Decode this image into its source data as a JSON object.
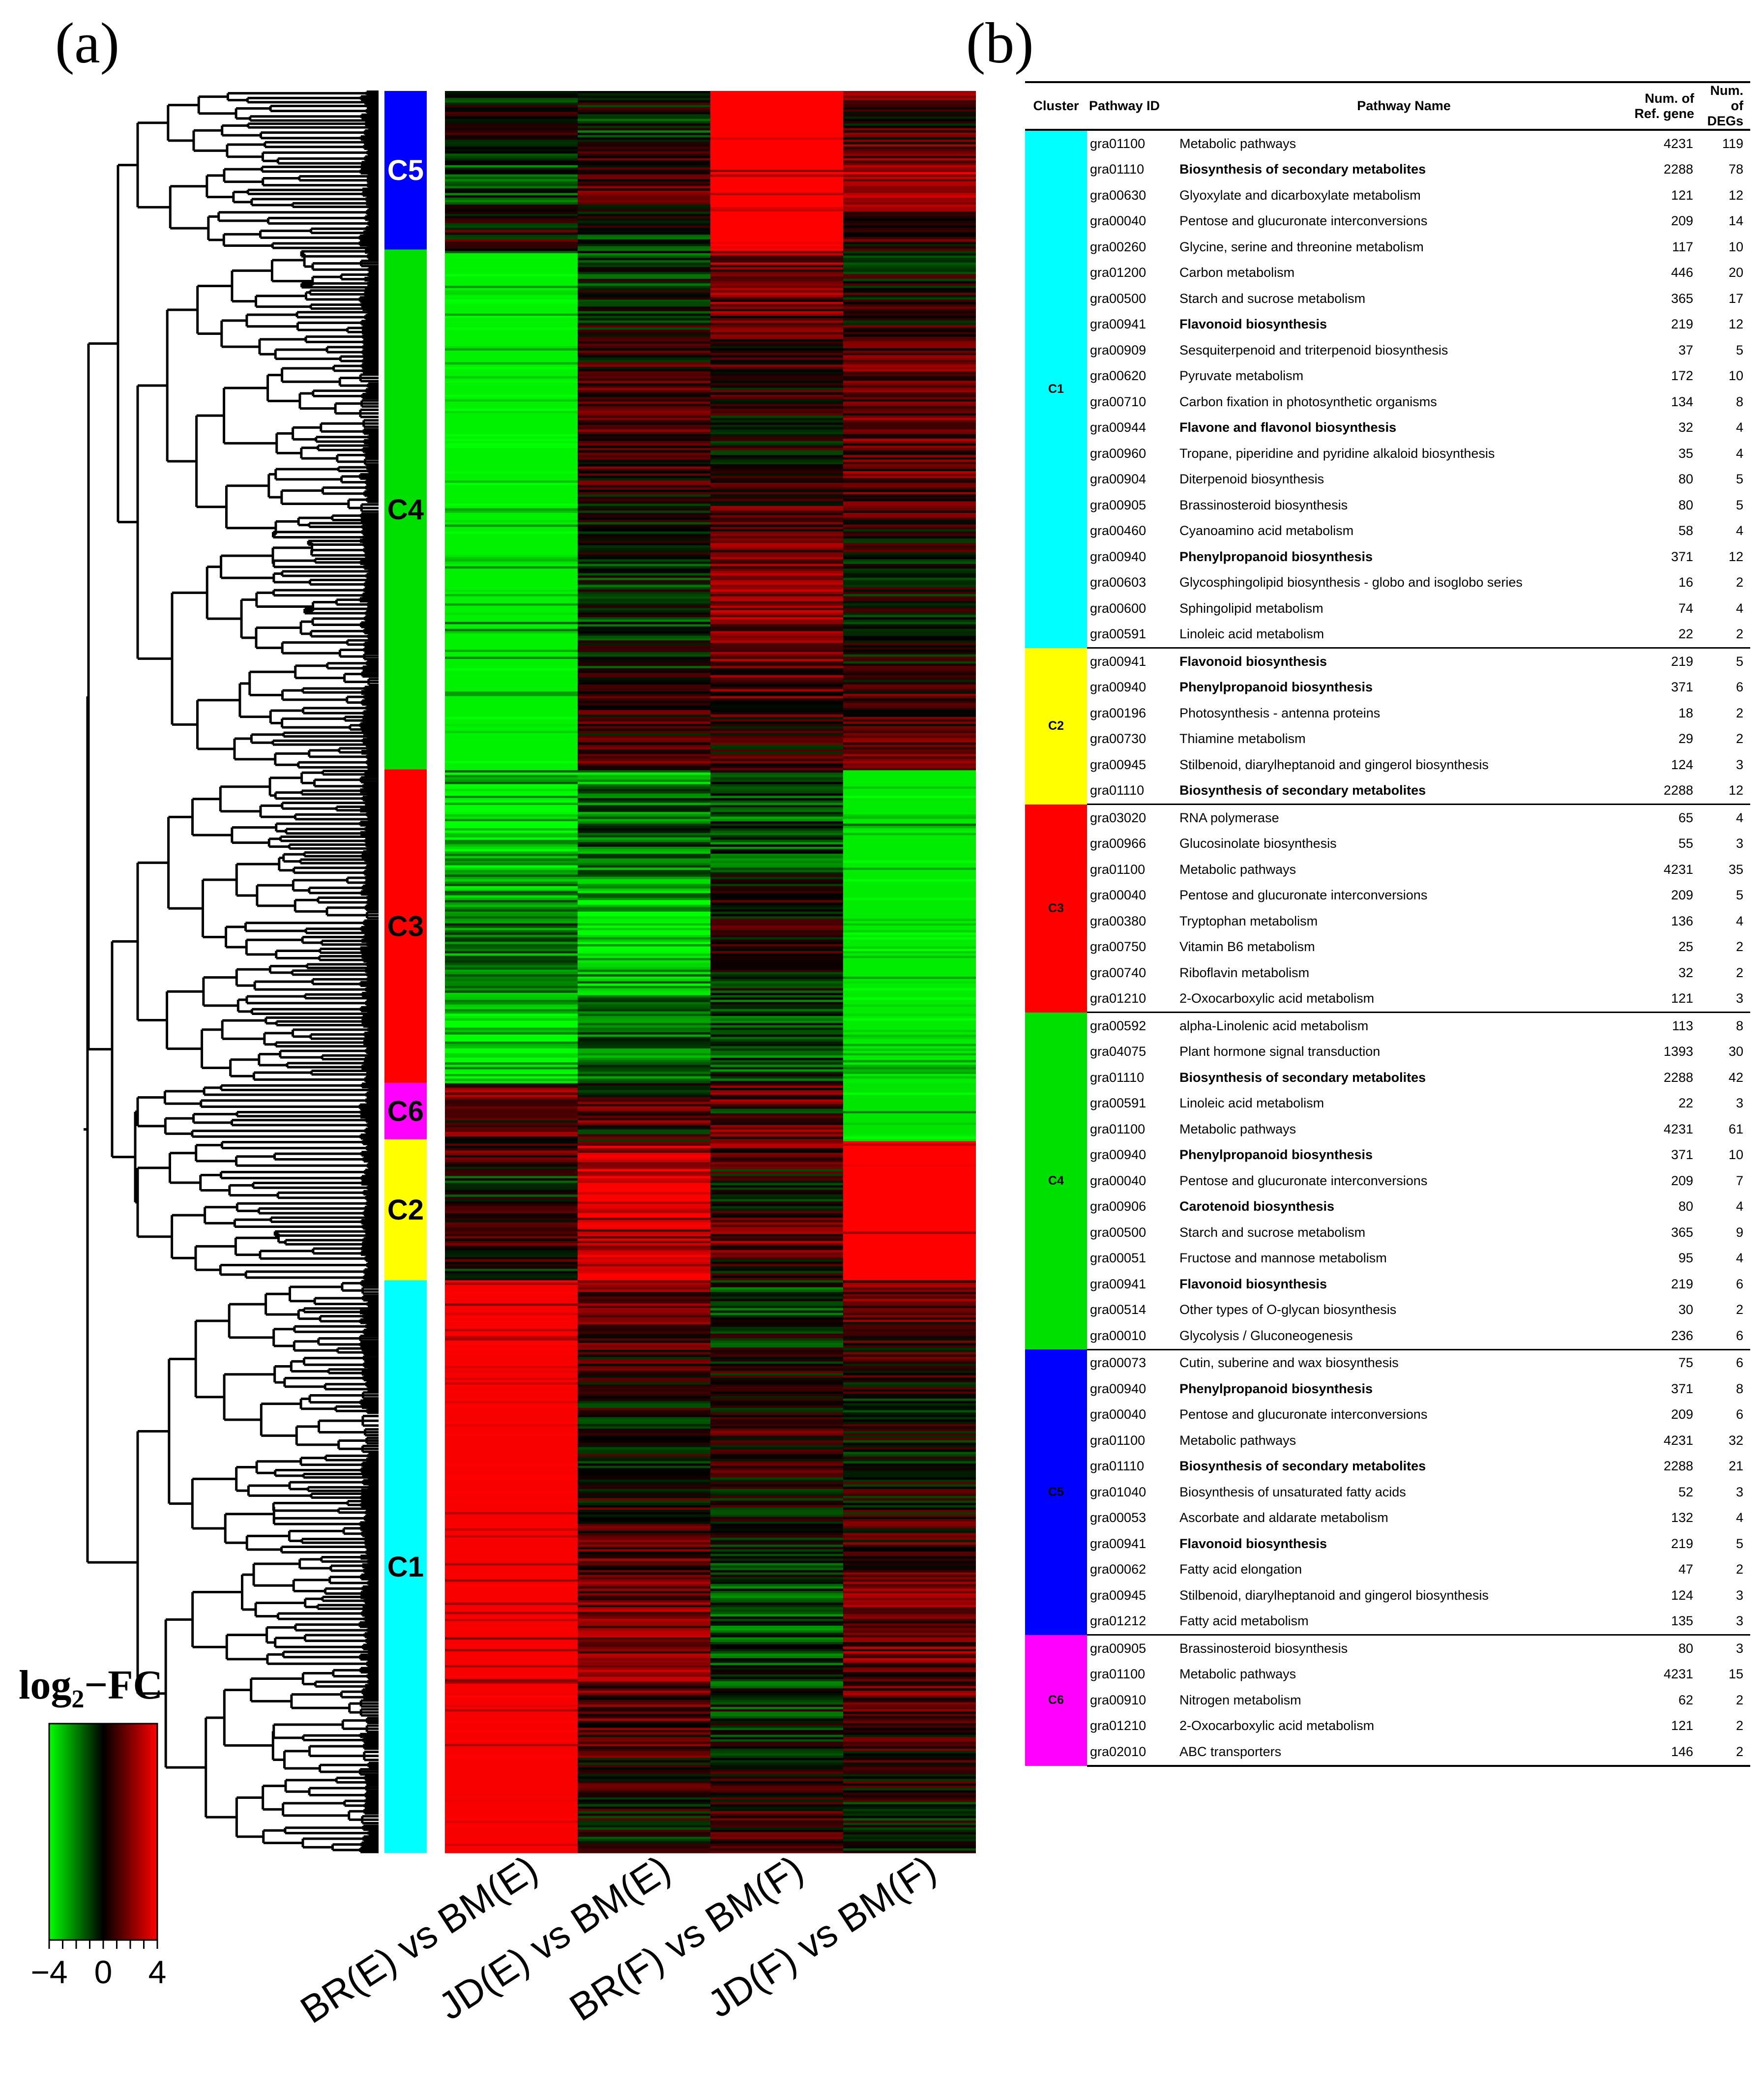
{
  "panel_labels": {
    "a": "(a)",
    "b": "(b)"
  },
  "chart_data": [
    {
      "type": "heatmap",
      "title": "",
      "columns": [
        "BR(E) vs BM(E)",
        "JD(E) vs BM(E)",
        "BR(F) vs BM(F)",
        "JD(F) vs BM(F)"
      ],
      "color_scale": {
        "label": "log2−FC",
        "label_base": "log",
        "label_sub": "2",
        "label_rest": "−FC",
        "ticks": [
          "−4",
          "0",
          "4"
        ],
        "min": -4,
        "max": 4,
        "low_color": "#00ff00",
        "mid_color": "#000000",
        "high_color": "#ff0000"
      },
      "clusters": [
        {
          "name": "C5",
          "color": "#0000ff",
          "text_color": "#ffffff",
          "share": 0.09,
          "pattern": [
            -0.5,
            0.2,
            4.0,
            1.6
          ]
        },
        {
          "name": "C4",
          "color": "#00e000",
          "text_color": "#000000",
          "share": 0.295,
          "pattern": [
            -3.8,
            0.2,
            1.2,
            0.8
          ]
        },
        {
          "name": "C3",
          "color": "#ff0000",
          "text_color": "#000000",
          "share": 0.178,
          "pattern": [
            -2.6,
            -2.4,
            -0.4,
            -3.7
          ]
        },
        {
          "name": "C6",
          "color": "#ff00ff",
          "text_color": "#000000",
          "share": 0.032,
          "pattern": [
            0.8,
            1.0,
            0.8,
            -3.6
          ]
        },
        {
          "name": "C2",
          "color": "#ffff00",
          "text_color": "#000000",
          "share": 0.08,
          "pattern": [
            0.2,
            3.3,
            0.6,
            4.0
          ]
        },
        {
          "name": "C1",
          "color": "#00ffff",
          "text_color": "#000000",
          "share": 0.325,
          "pattern": [
            3.9,
            1.0,
            -0.3,
            0.8
          ]
        }
      ]
    }
  ],
  "table": {
    "headers": {
      "cluster": "Cluster",
      "pathway_id": "Pathway ID",
      "pathway_name": "Pathway Name",
      "ref_line1": "Num. of",
      "ref_line2": "Ref. gene",
      "degs_line1": "Num. of",
      "degs_line2": "DEGs"
    },
    "groups": [
      {
        "cluster": "C1",
        "color": "#00ffff",
        "rows": [
          {
            "id": "gra01100",
            "name": "Metabolic pathways",
            "ref": 4231,
            "degs": 119,
            "bold": false
          },
          {
            "id": "gra01110",
            "name": "Biosynthesis of secondary metabolites",
            "ref": 2288,
            "degs": 78,
            "bold": true
          },
          {
            "id": "gra00630",
            "name": "Glyoxylate and dicarboxylate metabolism",
            "ref": 121,
            "degs": 12,
            "bold": false
          },
          {
            "id": "gra00040",
            "name": "Pentose and glucuronate interconversions",
            "ref": 209,
            "degs": 14,
            "bold": false
          },
          {
            "id": "gra00260",
            "name": "Glycine, serine and threonine metabolism",
            "ref": 117,
            "degs": 10,
            "bold": false
          },
          {
            "id": "gra01200",
            "name": "Carbon metabolism",
            "ref": 446,
            "degs": 20,
            "bold": false
          },
          {
            "id": "gra00500",
            "name": "Starch and sucrose metabolism",
            "ref": 365,
            "degs": 17,
            "bold": false
          },
          {
            "id": "gra00941",
            "name": "Flavonoid biosynthesis",
            "ref": 219,
            "degs": 12,
            "bold": true
          },
          {
            "id": "gra00909",
            "name": "Sesquiterpenoid and triterpenoid biosynthesis",
            "ref": 37,
            "degs": 5,
            "bold": false
          },
          {
            "id": "gra00620",
            "name": "Pyruvate metabolism",
            "ref": 172,
            "degs": 10,
            "bold": false
          },
          {
            "id": "gra00710",
            "name": "Carbon fixation in photosynthetic organisms",
            "ref": 134,
            "degs": 8,
            "bold": false
          },
          {
            "id": "gra00944",
            "name": "Flavone and flavonol biosynthesis",
            "ref": 32,
            "degs": 4,
            "bold": true
          },
          {
            "id": "gra00960",
            "name": "Tropane, piperidine and pyridine alkaloid biosynthesis",
            "ref": 35,
            "degs": 4,
            "bold": false
          },
          {
            "id": "gra00904",
            "name": "Diterpenoid biosynthesis",
            "ref": 80,
            "degs": 5,
            "bold": false
          },
          {
            "id": "gra00905",
            "name": "Brassinosteroid biosynthesis",
            "ref": 80,
            "degs": 5,
            "bold": false
          },
          {
            "id": "gra00460",
            "name": "Cyanoamino acid metabolism",
            "ref": 58,
            "degs": 4,
            "bold": false
          },
          {
            "id": "gra00940",
            "name": "Phenylpropanoid biosynthesis",
            "ref": 371,
            "degs": 12,
            "bold": true
          },
          {
            "id": "gra00603",
            "name": "Glycosphingolipid biosynthesis - globo and isoglobo series",
            "ref": 16,
            "degs": 2,
            "bold": false
          },
          {
            "id": "gra00600",
            "name": "Sphingolipid metabolism",
            "ref": 74,
            "degs": 4,
            "bold": false
          },
          {
            "id": "gra00591",
            "name": "Linoleic acid metabolism",
            "ref": 22,
            "degs": 2,
            "bold": false
          }
        ]
      },
      {
        "cluster": "C2",
        "color": "#ffff00",
        "rows": [
          {
            "id": "gra00941",
            "name": "Flavonoid biosynthesis",
            "ref": 219,
            "degs": 5,
            "bold": true
          },
          {
            "id": "gra00940",
            "name": "Phenylpropanoid biosynthesis",
            "ref": 371,
            "degs": 6,
            "bold": true
          },
          {
            "id": "gra00196",
            "name": "Photosynthesis - antenna proteins",
            "ref": 18,
            "degs": 2,
            "bold": false
          },
          {
            "id": "gra00730",
            "name": "Thiamine metabolism",
            "ref": 29,
            "degs": 2,
            "bold": false
          },
          {
            "id": "gra00945",
            "name": "Stilbenoid, diarylheptanoid and gingerol biosynthesis",
            "ref": 124,
            "degs": 3,
            "bold": false
          },
          {
            "id": "gra01110",
            "name": "Biosynthesis of secondary metabolites",
            "ref": 2288,
            "degs": 12,
            "bold": true
          }
        ]
      },
      {
        "cluster": "C3",
        "color": "#ff0000",
        "rows": [
          {
            "id": "gra03020",
            "name": "RNA polymerase",
            "ref": 65,
            "degs": 4,
            "bold": false
          },
          {
            "id": "gra00966",
            "name": "Glucosinolate biosynthesis",
            "ref": 55,
            "degs": 3,
            "bold": false
          },
          {
            "id": "gra01100",
            "name": "Metabolic pathways",
            "ref": 4231,
            "degs": 35,
            "bold": false
          },
          {
            "id": "gra00040",
            "name": "Pentose and glucuronate interconversions",
            "ref": 209,
            "degs": 5,
            "bold": false
          },
          {
            "id": "gra00380",
            "name": "Tryptophan metabolism",
            "ref": 136,
            "degs": 4,
            "bold": false
          },
          {
            "id": "gra00750",
            "name": "Vitamin B6 metabolism",
            "ref": 25,
            "degs": 2,
            "bold": false
          },
          {
            "id": "gra00740",
            "name": "Riboflavin metabolism",
            "ref": 32,
            "degs": 2,
            "bold": false
          },
          {
            "id": "gra01210",
            "name": "2-Oxocarboxylic acid metabolism",
            "ref": 121,
            "degs": 3,
            "bold": false
          }
        ]
      },
      {
        "cluster": "C4",
        "color": "#00e000",
        "rows": [
          {
            "id": "gra00592",
            "name": "alpha-Linolenic acid metabolism",
            "ref": 113,
            "degs": 8,
            "bold": false
          },
          {
            "id": "gra04075",
            "name": "Plant hormone signal transduction",
            "ref": 1393,
            "degs": 30,
            "bold": false
          },
          {
            "id": "gra01110",
            "name": "Biosynthesis of secondary metabolites",
            "ref": 2288,
            "degs": 42,
            "bold": true
          },
          {
            "id": "gra00591",
            "name": "Linoleic acid metabolism",
            "ref": 22,
            "degs": 3,
            "bold": false
          },
          {
            "id": "gra01100",
            "name": "Metabolic pathways",
            "ref": 4231,
            "degs": 61,
            "bold": false
          },
          {
            "id": "gra00940",
            "name": "Phenylpropanoid biosynthesis",
            "ref": 371,
            "degs": 10,
            "bold": true
          },
          {
            "id": "gra00040",
            "name": "Pentose and glucuronate interconversions",
            "ref": 209,
            "degs": 7,
            "bold": false
          },
          {
            "id": "gra00906",
            "name": "Carotenoid biosynthesis",
            "ref": 80,
            "degs": 4,
            "bold": true
          },
          {
            "id": "gra00500",
            "name": "Starch and sucrose metabolism",
            "ref": 365,
            "degs": 9,
            "bold": false
          },
          {
            "id": "gra00051",
            "name": "Fructose and mannose metabolism",
            "ref": 95,
            "degs": 4,
            "bold": false
          },
          {
            "id": "gra00941",
            "name": "Flavonoid biosynthesis",
            "ref": 219,
            "degs": 6,
            "bold": true
          },
          {
            "id": "gra00514",
            "name": "Other types of O-glycan biosynthesis",
            "ref": 30,
            "degs": 2,
            "bold": false
          },
          {
            "id": "gra00010",
            "name": "Glycolysis / Gluconeogenesis",
            "ref": 236,
            "degs": 6,
            "bold": false
          }
        ]
      },
      {
        "cluster": "C5",
        "color": "#0000ff",
        "rows": [
          {
            "id": "gra00073",
            "name": "Cutin, suberine and wax biosynthesis",
            "ref": 75,
            "degs": 6,
            "bold": false
          },
          {
            "id": "gra00940",
            "name": "Phenylpropanoid biosynthesis",
            "ref": 371,
            "degs": 8,
            "bold": true
          },
          {
            "id": "gra00040",
            "name": "Pentose and glucuronate interconversions",
            "ref": 209,
            "degs": 6,
            "bold": false
          },
          {
            "id": "gra01100",
            "name": "Metabolic pathways",
            "ref": 4231,
            "degs": 32,
            "bold": false
          },
          {
            "id": "gra01110",
            "name": "Biosynthesis of secondary metabolites",
            "ref": 2288,
            "degs": 21,
            "bold": true
          },
          {
            "id": "gra01040",
            "name": "Biosynthesis of unsaturated fatty acids",
            "ref": 52,
            "degs": 3,
            "bold": false
          },
          {
            "id": "gra00053",
            "name": "Ascorbate and aldarate metabolism",
            "ref": 132,
            "degs": 4,
            "bold": false
          },
          {
            "id": "gra00941",
            "name": "Flavonoid biosynthesis",
            "ref": 219,
            "degs": 5,
            "bold": true
          },
          {
            "id": "gra00062",
            "name": "Fatty acid elongation",
            "ref": 47,
            "degs": 2,
            "bold": false
          },
          {
            "id": "gra00945",
            "name": "Stilbenoid, diarylheptanoid and gingerol biosynthesis",
            "ref": 124,
            "degs": 3,
            "bold": false
          },
          {
            "id": "gra01212",
            "name": "Fatty acid metabolism",
            "ref": 135,
            "degs": 3,
            "bold": false
          }
        ]
      },
      {
        "cluster": "C6",
        "color": "#ff00ff",
        "rows": [
          {
            "id": "gra00905",
            "name": "Brassinosteroid biosynthesis",
            "ref": 80,
            "degs": 3,
            "bold": false
          },
          {
            "id": "gra01100",
            "name": "Metabolic pathways",
            "ref": 4231,
            "degs": 15,
            "bold": false
          },
          {
            "id": "gra00910",
            "name": "Nitrogen metabolism",
            "ref": 62,
            "degs": 2,
            "bold": false
          },
          {
            "id": "gra01210",
            "name": "2-Oxocarboxylic acid metabolism",
            "ref": 121,
            "degs": 2,
            "bold": false
          },
          {
            "id": "gra02010",
            "name": "ABC transporters",
            "ref": 146,
            "degs": 2,
            "bold": false
          }
        ]
      }
    ]
  }
}
